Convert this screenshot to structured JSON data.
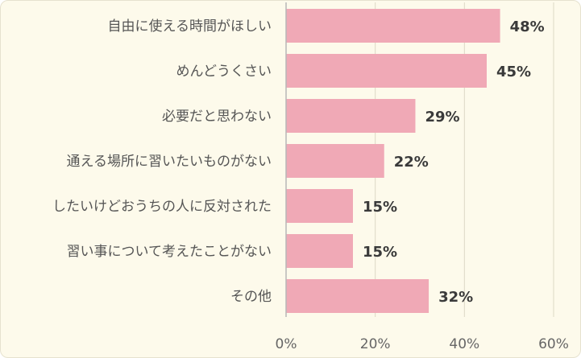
{
  "chart_data": {
    "type": "bar",
    "orientation": "horizontal",
    "categories": [
      "自由に使える時間がほしい",
      "めんどうくさい",
      "必要だと思わない",
      "通える場所に習いたいものがない",
      "したいけどおうちの人に反対された",
      "習い事について考えたことがない",
      "その他"
    ],
    "values": [
      48,
      45,
      29,
      22,
      15,
      15,
      32
    ],
    "value_labels": [
      "48%",
      "45%",
      "29%",
      "22%",
      "15%",
      "15%",
      "32%"
    ],
    "xlim": [
      0,
      60
    ],
    "x_ticks": [
      0,
      20,
      40,
      60
    ],
    "x_tick_labels": [
      "0%",
      "20%",
      "40%",
      "60%"
    ],
    "grid": true,
    "legend": "none",
    "title": "",
    "xlabel": "",
    "ylabel": ""
  },
  "colors": {
    "bar": "#f0a9b6",
    "background": "#fdfaeb",
    "gridline": "#ddd9c6",
    "axis": "#b8b8b8"
  }
}
